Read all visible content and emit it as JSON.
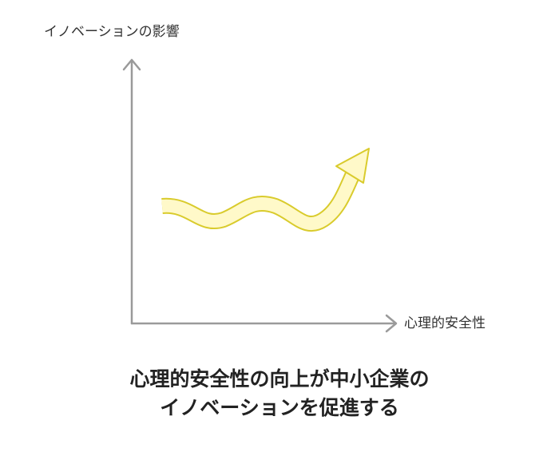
{
  "axes": {
    "y_label": "イノベーションの影響",
    "x_label": "心理的安全性"
  },
  "title": {
    "lines": [
      "心理的安全性の向上が中小企業の",
      "イノベーションを促進する"
    ]
  }
}
